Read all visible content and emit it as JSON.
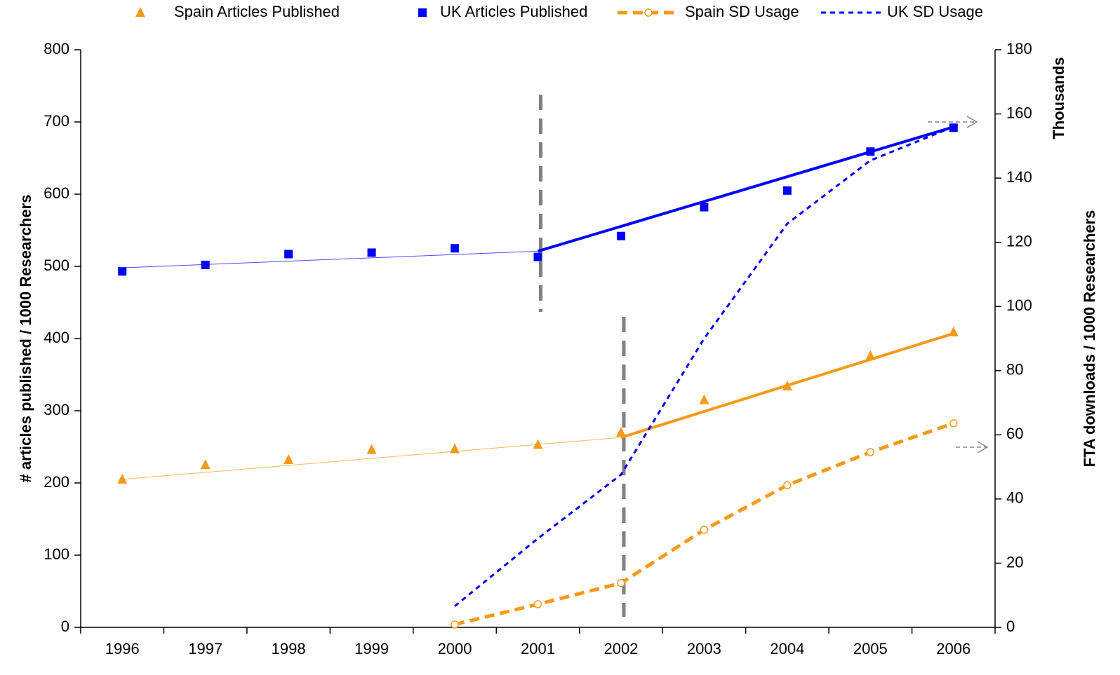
{
  "chart_data": {
    "type": "line",
    "categories": [
      "1996",
      "1997",
      "1998",
      "1999",
      "2000",
      "2001",
      "2002",
      "2003",
      "2004",
      "2005",
      "2006"
    ],
    "series": [
      {
        "name": "Spain Articles Published",
        "color": "#f59a1b",
        "marker": "triangle",
        "values": [
          205,
          225,
          232,
          246,
          247,
          253,
          270,
          315,
          334,
          376,
          409
        ]
      },
      {
        "name": "UK Articles Published",
        "color": "#0000ff",
        "marker": "square",
        "values": [
          493,
          502,
          517,
          519,
          525,
          513,
          542,
          582,
          605,
          659,
          692
        ]
      },
      {
        "name": "Spain SD Usage",
        "color": "#f59a1b",
        "marker": "circle",
        "axis": "y2",
        "values": [
          null,
          null,
          null,
          null,
          0.9,
          7.2,
          13.8,
          30.4,
          44.3,
          54.6,
          63.6
        ]
      },
      {
        "name": "UK SD Usage",
        "color": "#0000ff",
        "marker": "none",
        "axis": "y2",
        "values": [
          null,
          null,
          null,
          null,
          6.6,
          27.7,
          47.6,
          90,
          125.8,
          145.5,
          156
        ]
      }
    ],
    "trendlines": [
      {
        "color": "#f59a1b",
        "width": 1,
        "categories": [
          "1996",
          "2002"
        ],
        "values": [
          205,
          263
        ]
      },
      {
        "color": "#f59a1b",
        "width": 4,
        "categories": [
          "2002",
          "2006"
        ],
        "values": [
          263,
          407
        ]
      },
      {
        "color": "#0000ff",
        "width": 1,
        "categories": [
          "1996",
          "2001"
        ],
        "values": [
          498,
          521
        ]
      },
      {
        "color": "#0000ff",
        "width": 4,
        "categories": [
          "2001",
          "2006"
        ],
        "values": [
          521,
          693
        ]
      }
    ],
    "vlines": [
      "2001",
      "2002"
    ],
    "ylabel": "# articles published / 1000 Researchers",
    "y2label": "FTA downloads / 1000 Researchers",
    "y2unit": "Thousands",
    "ylim": [
      0,
      800
    ],
    "yticks": [
      0,
      100,
      200,
      300,
      400,
      500,
      600,
      700,
      800
    ],
    "y2lim": [
      0,
      180
    ],
    "y2ticks": [
      0,
      20,
      40,
      60,
      80,
      100,
      120,
      140,
      160,
      180
    ],
    "legend": "top"
  }
}
